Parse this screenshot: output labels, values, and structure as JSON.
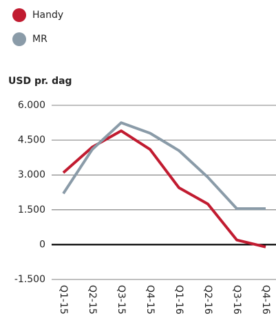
{
  "chart_data": {
    "type": "line",
    "y_label": "USD pr. dag",
    "categories": [
      "Q1-15",
      "Q2-15",
      "Q3-15",
      "Q4-15",
      "Q1-16",
      "Q2-16",
      "Q3-16",
      "Q4-16"
    ],
    "series": [
      {
        "name": "Handy",
        "color": "#c11b30",
        "values": [
          3100,
          4200,
          4900,
          4100,
          2450,
          1750,
          200,
          -100
        ]
      },
      {
        "name": "MR",
        "color": "#8a9ba8",
        "values": [
          2200,
          4100,
          5250,
          4800,
          4050,
          2900,
          1550,
          1550
        ]
      }
    ],
    "ylim": [
      -1500,
      6000
    ],
    "yticks": [
      {
        "value": -1500,
        "label": "-1.500"
      },
      0,
      {
        "value": 1500,
        "label": "1.500"
      },
      {
        "value": 3000,
        "label": "3.000"
      },
      {
        "value": 4500,
        "label": "4.500"
      },
      {
        "value": 6000,
        "label": "6.000"
      }
    ],
    "grid": true
  }
}
